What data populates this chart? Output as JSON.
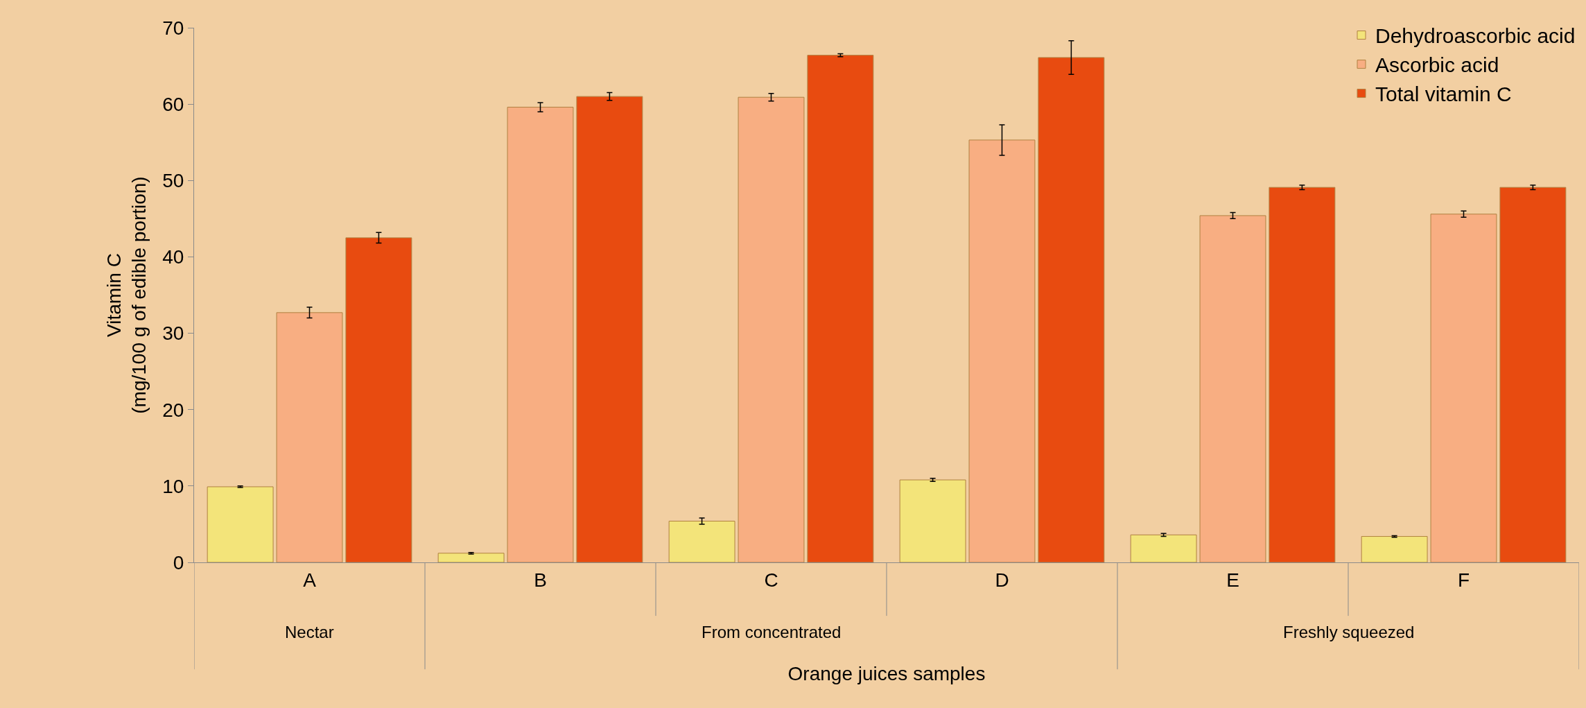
{
  "chart_data": {
    "type": "bar",
    "categories": [
      "A",
      "B",
      "C",
      "D",
      "E",
      "F"
    ],
    "series": [
      {
        "name": "Dehydroascorbic acid",
        "color": "#f3e47a",
        "values": [
          9.9,
          1.2,
          5.4,
          10.8,
          3.6,
          3.4
        ],
        "errors": [
          0.1,
          0.1,
          0.4,
          0.2,
          0.2,
          0.1
        ]
      },
      {
        "name": "Ascorbic acid",
        "color": "#f8ae82",
        "values": [
          32.7,
          59.6,
          60.9,
          55.3,
          45.4,
          45.6
        ],
        "errors": [
          0.7,
          0.6,
          0.5,
          2.0,
          0.4,
          0.4
        ]
      },
      {
        "name": "Total vitamin C",
        "color": "#e84b10",
        "values": [
          42.5,
          61.0,
          66.4,
          66.1,
          49.1,
          49.1
        ],
        "errors": [
          0.7,
          0.5,
          0.2,
          2.2,
          0.3,
          0.3
        ]
      }
    ],
    "ylabel": "Vitamin C\n(mg/100 g of edible portion)",
    "xlabel": "Orange juices samples",
    "annotations": [
      "Nectar",
      "From concentrated",
      "Freshly squeezed"
    ],
    "ylim": [
      0,
      70
    ],
    "yticks": [
      0,
      10,
      20,
      30,
      40,
      50,
      60,
      70
    ],
    "legend": "top right"
  }
}
